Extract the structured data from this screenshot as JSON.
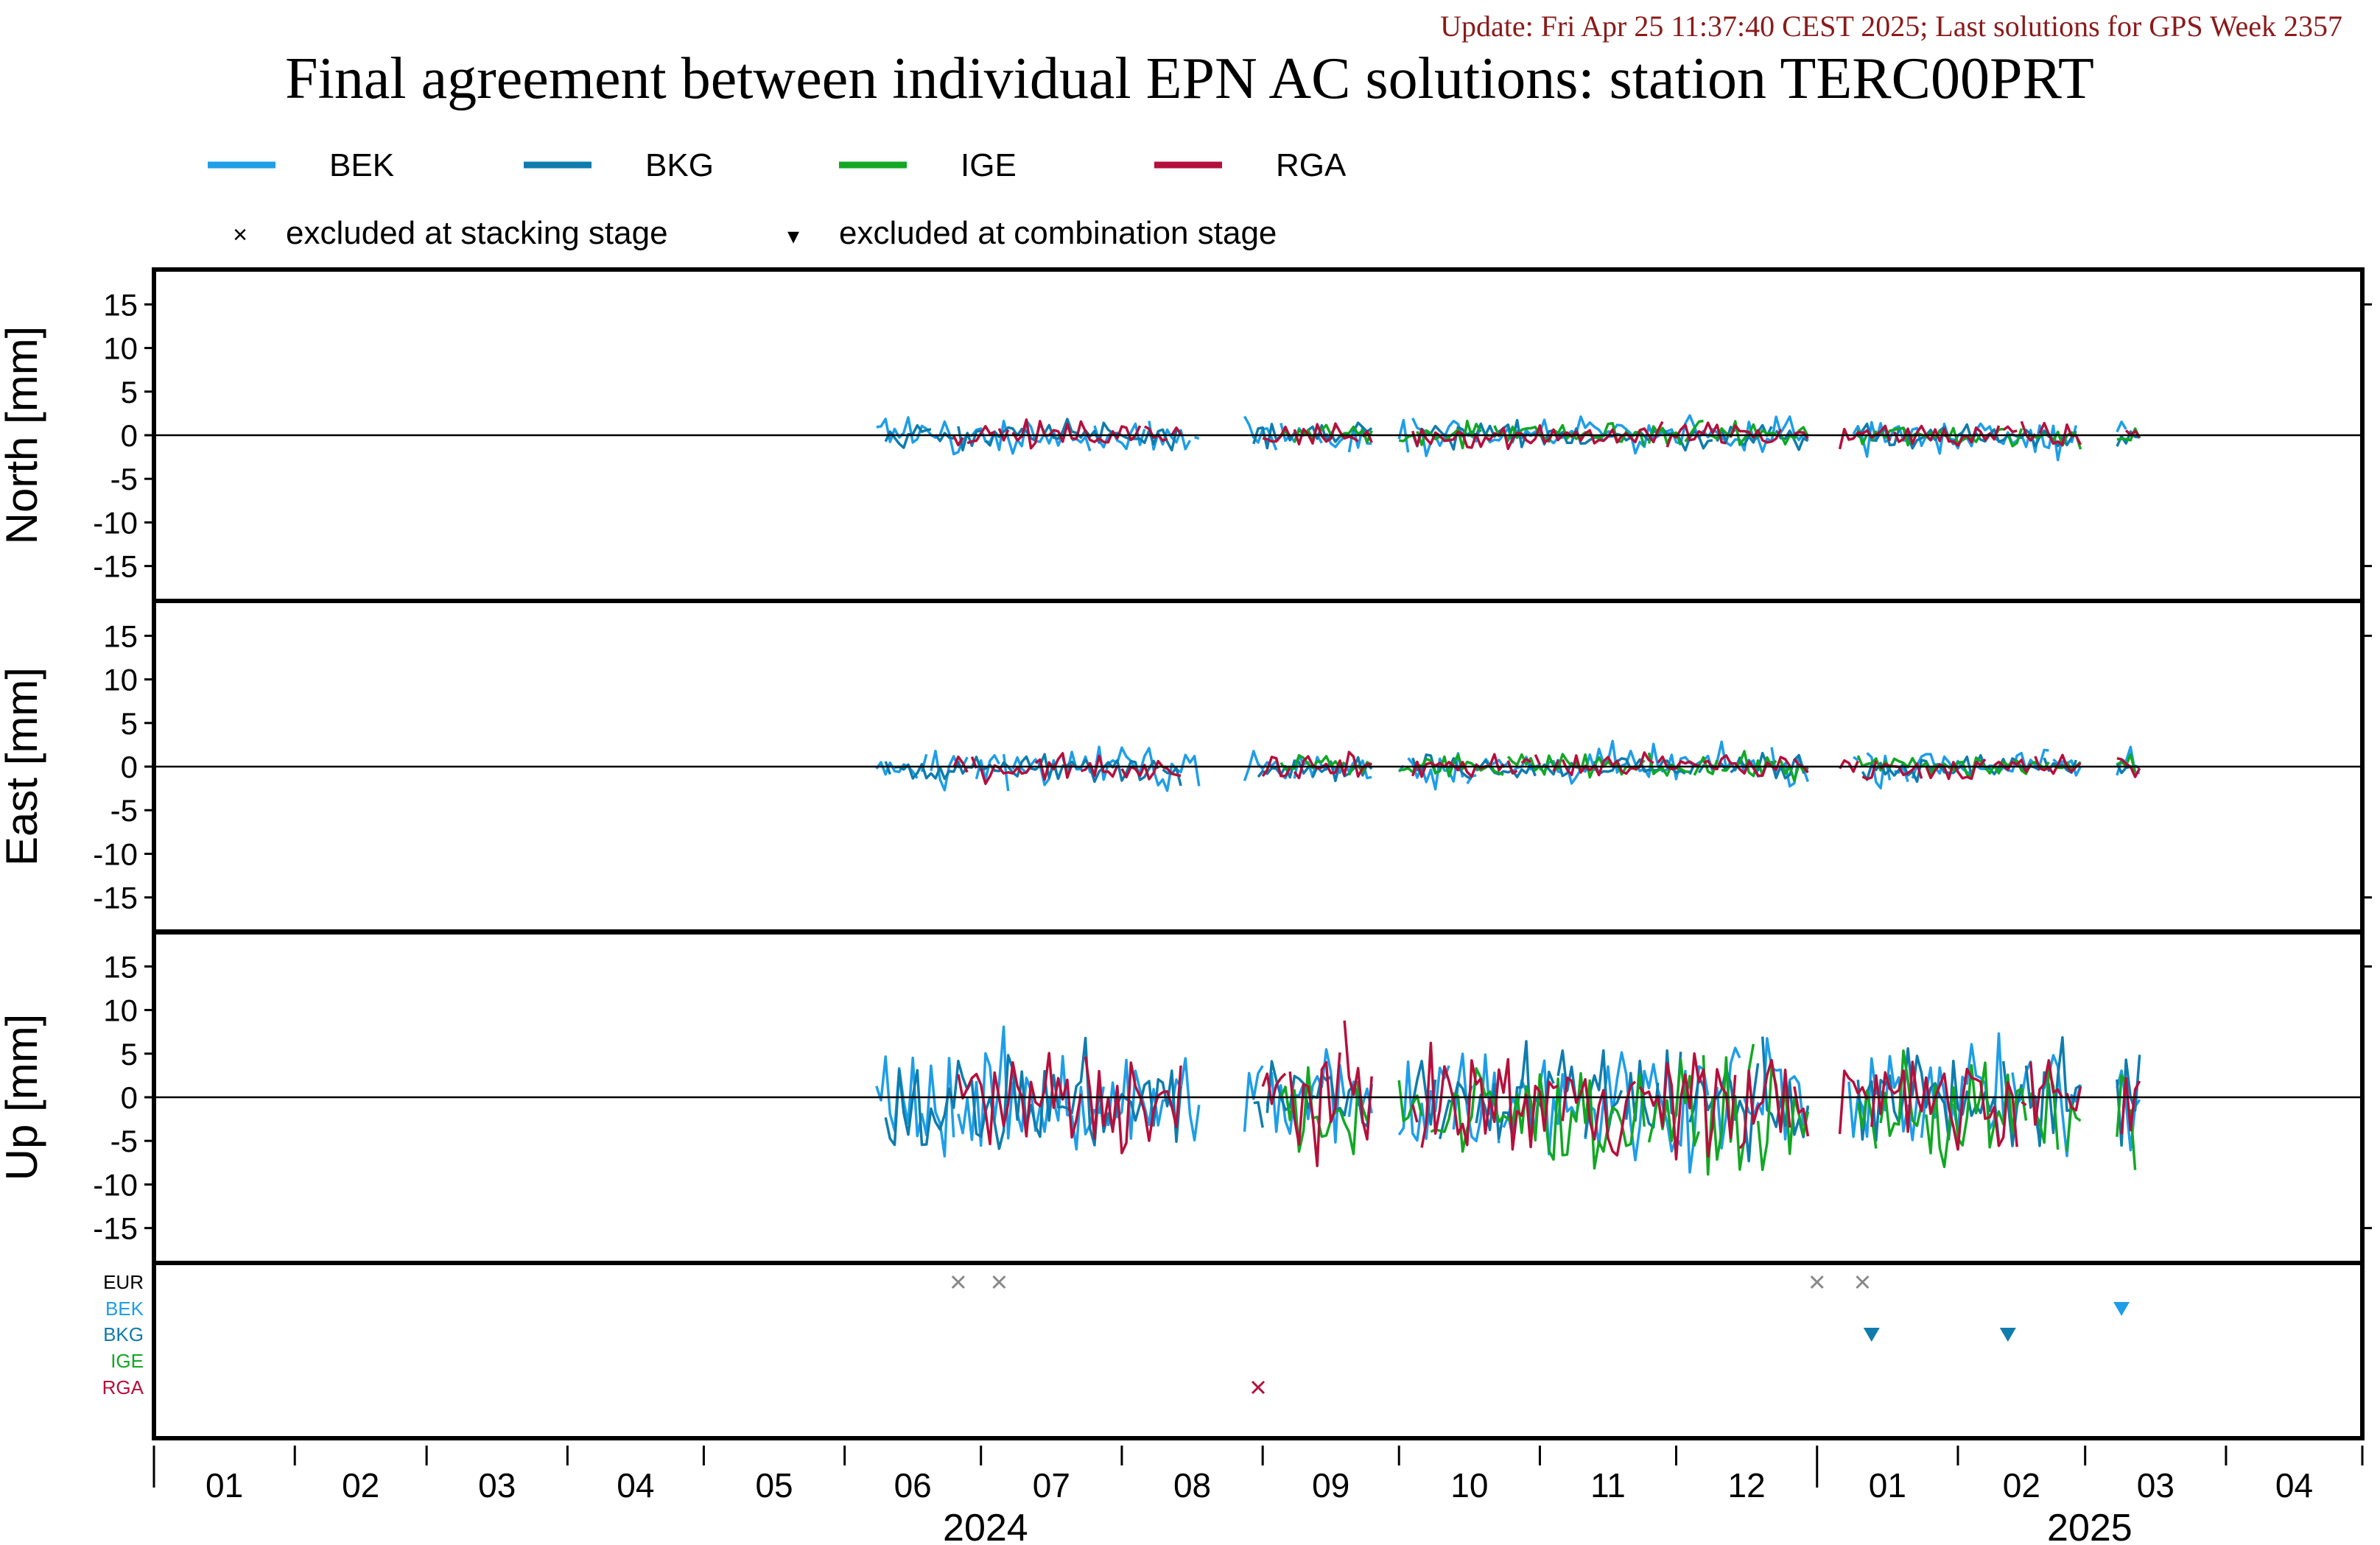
{
  "update_text": "Update: Fri Apr 25 11:37:40 CEST 2025; Last solutions for GPS Week 2357",
  "title": "Final agreement between individual EPN AC solutions: station TERC00PRT",
  "colors": {
    "BEK": "#1e9ee8",
    "BKG": "#0f7cad",
    "IGE": "#12a824",
    "RGA": "#b5103c",
    "EUR": "#000000",
    "update_text": "#8b1a1a",
    "excluded_stacking_marker": "#888888"
  },
  "legend": {
    "series": [
      "BEK",
      "BKG",
      "IGE",
      "RGA"
    ],
    "stacking_label": "excluded at stacking stage",
    "stacking_symbol": "×",
    "combination_label": "excluded at combination stage",
    "combination_symbol": "▾"
  },
  "chart_data": {
    "type": "line",
    "x_unit": "month",
    "x_range": [
      "2024-01-01",
      "2025-05-01"
    ],
    "x_tick_labels": [
      "01",
      "02",
      "03",
      "04",
      "05",
      "06",
      "07",
      "08",
      "09",
      "10",
      "11",
      "12",
      "01",
      "02",
      "03",
      "04"
    ],
    "year_labels": [
      "2024",
      "2025"
    ],
    "panels": [
      {
        "ylabel": "North [mm]",
        "ylim": [
          -19,
          19
        ],
        "yticks": [
          15,
          10,
          5,
          0,
          -5,
          -10,
          -15
        ],
        "scatter": 0.7,
        "bek_scatter": 1.0
      },
      {
        "ylabel": "East [mm]",
        "ylim": [
          -19,
          19
        ],
        "yticks": [
          15,
          10,
          5,
          0,
          -5,
          -10,
          -15
        ],
        "scatter": 0.7,
        "bek_scatter": 1.1
      },
      {
        "ylabel": "Up [mm]",
        "ylim": [
          -19,
          19
        ],
        "yticks": [
          15,
          10,
          5,
          0,
          -5,
          -10,
          -15
        ],
        "scatter": 3.0,
        "bek_scatter": 3.2
      }
    ],
    "series": [
      {
        "name": "BEK",
        "segments": [
          [
            "2024-06-08",
            "2024-08-18"
          ],
          [
            "2024-08-28",
            "2024-09-25"
          ],
          [
            "2024-10-01",
            "2024-12-30"
          ],
          [
            "2025-01-08",
            "2025-02-28"
          ],
          [
            "2025-03-08",
            "2025-03-13"
          ]
        ]
      },
      {
        "name": "BKG",
        "segments": [
          [
            "2024-06-10",
            "2024-08-14"
          ],
          [
            "2024-08-30",
            "2024-09-25"
          ],
          [
            "2024-10-04",
            "2024-12-30"
          ],
          [
            "2025-01-10",
            "2025-02-28"
          ],
          [
            "2025-03-08",
            "2025-03-13"
          ]
        ]
      },
      {
        "name": "IGE",
        "segments": [
          [
            "2024-09-05",
            "2024-09-25"
          ],
          [
            "2024-10-01",
            "2024-12-30"
          ],
          [
            "2025-01-10",
            "2025-02-28"
          ],
          [
            "2025-03-08",
            "2025-03-13"
          ]
        ]
      },
      {
        "name": "RGA",
        "segments": [
          [
            "2024-06-25",
            "2024-08-14"
          ],
          [
            "2024-09-01",
            "2024-09-25"
          ],
          [
            "2024-10-04",
            "2024-12-30"
          ],
          [
            "2025-01-06",
            "2025-02-28"
          ],
          [
            "2025-03-08",
            "2025-03-13"
          ]
        ]
      }
    ],
    "exclusion_rows": [
      "EUR",
      "BEK",
      "BKG",
      "IGE",
      "RGA"
    ],
    "exclusions": [
      {
        "row": "EUR",
        "date": "2024-06-26",
        "marker": "x"
      },
      {
        "row": "EUR",
        "date": "2024-07-05",
        "marker": "x"
      },
      {
        "row": "EUR",
        "date": "2025-01-01",
        "marker": "x"
      },
      {
        "row": "EUR",
        "date": "2025-01-11",
        "marker": "x"
      },
      {
        "row": "BEK",
        "date": "2025-03-09",
        "marker": "triangle"
      },
      {
        "row": "BKG",
        "date": "2025-01-13",
        "marker": "triangle"
      },
      {
        "row": "BKG",
        "date": "2025-02-12",
        "marker": "triangle"
      },
      {
        "row": "RGA",
        "date": "2024-08-31",
        "marker": "x"
      }
    ]
  }
}
